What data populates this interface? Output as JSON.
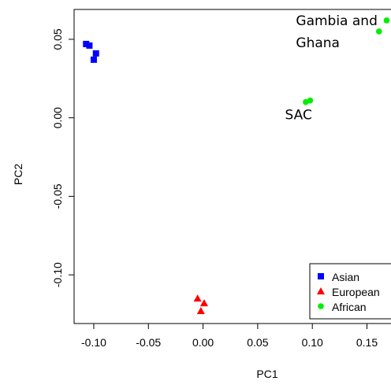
{
  "chart_data": {
    "type": "scatter",
    "title": "",
    "xlabel": "PC1",
    "ylabel": "PC2",
    "xlim": [
      -0.118,
      0.172
    ],
    "ylim": [
      -0.131,
      0.069
    ],
    "x_ticks": [
      {
        "value": -0.1,
        "label": "-0.10"
      },
      {
        "value": -0.05,
        "label": "-0.05"
      },
      {
        "value": 0.0,
        "label": "0.00"
      },
      {
        "value": 0.05,
        "label": "0.05"
      },
      {
        "value": 0.1,
        "label": "0.10"
      },
      {
        "value": 0.15,
        "label": "0.15"
      }
    ],
    "y_ticks": [
      {
        "value": -0.1,
        "label": "-0.10"
      },
      {
        "value": -0.05,
        "label": "-0.05"
      },
      {
        "value": 0.0,
        "label": "0.00"
      },
      {
        "value": 0.05,
        "label": "0.05"
      }
    ],
    "grid": false,
    "legend_position": "bottom-right",
    "series": [
      {
        "name": "Asian",
        "color": "#0000ff",
        "marker": "square",
        "points": [
          {
            "x": -0.107,
            "y": 0.047
          },
          {
            "x": -0.104,
            "y": 0.046
          },
          {
            "x": -0.098,
            "y": 0.041
          },
          {
            "x": -0.1,
            "y": 0.037
          }
        ]
      },
      {
        "name": "European",
        "color": "#ff0000",
        "marker": "triangle",
        "points": [
          {
            "x": -0.005,
            "y": -0.115
          },
          {
            "x": 0.001,
            "y": -0.118
          },
          {
            "x": -0.002,
            "y": -0.123
          }
        ]
      },
      {
        "name": "African",
        "color": "#00ee00",
        "marker": "circle",
        "points": [
          {
            "x": 0.094,
            "y": 0.01
          },
          {
            "x": 0.098,
            "y": 0.011
          },
          {
            "x": 0.161,
            "y": 0.055
          },
          {
            "x": 0.168,
            "y": 0.062
          }
        ]
      }
    ],
    "annotations": [
      {
        "text": "Gambia and",
        "x": 0.085,
        "y": 0.059
      },
      {
        "text": "Ghana",
        "x": 0.085,
        "y": 0.045
      },
      {
        "text": "SAC",
        "x": 0.075,
        "y": -0.001
      }
    ]
  }
}
